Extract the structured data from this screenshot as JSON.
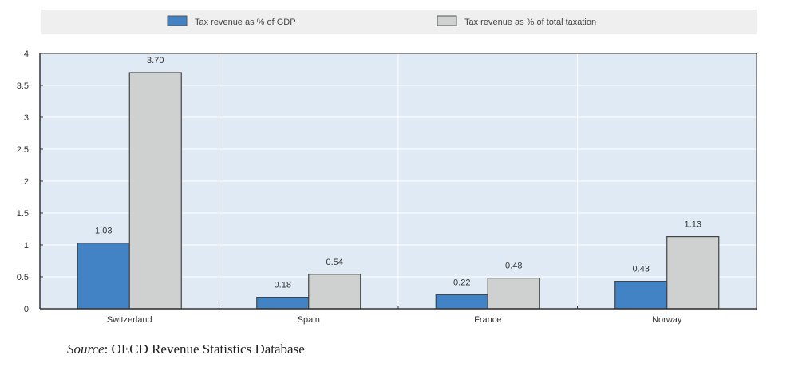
{
  "chart_data": {
    "type": "bar",
    "title": "",
    "xlabel": "",
    "ylabel": "",
    "categories": [
      "Switzerland",
      "Spain",
      "France",
      "Norway"
    ],
    "series": [
      {
        "name": "Tax revenue as % of GDP",
        "values": [
          1.03,
          0.18,
          0.22,
          0.43
        ],
        "labels": [
          "1.03",
          "0.18",
          "0.22",
          "0.43"
        ],
        "color": "#4183c4"
      },
      {
        "name": "Tax revenue as % of total taxation",
        "values": [
          3.7,
          0.54,
          0.48,
          1.13
        ],
        "labels": [
          "3.70",
          "0.54",
          "0.48",
          "1.13"
        ],
        "color": "#cfd1d0"
      }
    ],
    "ylim": [
      0,
      4
    ],
    "yticks": [
      "0",
      "0.5",
      "1",
      "1.5",
      "2",
      "2.5",
      "3",
      "3.5",
      "4"
    ],
    "grid": true,
    "legend_position": "top",
    "plot_background": "#dfeaf4"
  },
  "source": {
    "label": "Source",
    "text": ": OECD Revenue Statistics Database"
  }
}
